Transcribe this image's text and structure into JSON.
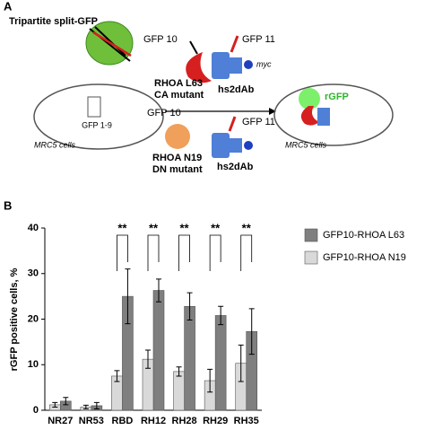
{
  "panels": [
    "A",
    "B"
  ],
  "panel_a": {
    "title": "Tripartite split-GFP",
    "top": {
      "gfp10": "GFP 10",
      "gfp11": "GFP 11",
      "rhoa": "RHOA L63",
      "mutant": "CA mutant",
      "nanobody": "hs2dAb",
      "tag": "myc"
    },
    "cell_left": {
      "fragment": "GFP 1-9",
      "label": "MRC5 cells"
    },
    "cell_right": {
      "signal": "rGFP",
      "label": "MRC5 cells"
    },
    "bottom": {
      "gfp10": "GFP 10",
      "gfp11": "GFP 11",
      "rhoa": "RHOA N19",
      "mutant": "DN mutant",
      "nanobody": "hs2dAb"
    }
  },
  "chart_data": {
    "type": "bar",
    "ylabel": "rGFP positive cells, %",
    "categories": [
      "NR27",
      "NR53",
      "RBD",
      "RH12",
      "RH28",
      "RH29",
      "RH35"
    ],
    "series": [
      {
        "name": "GFP10-RHOA L63",
        "color": "#7f7f7f",
        "values": [
          2,
          1,
          25,
          26.3,
          22.8,
          20.8,
          17.3
        ],
        "errors": [
          0.8,
          0.7,
          6,
          2.5,
          3,
          2,
          5
        ]
      },
      {
        "name": "GFP10-RHOA N19",
        "color": "#d9d9d9",
        "values": [
          1.2,
          0.7,
          7.5,
          11.2,
          8.5,
          6.5,
          10.3
        ],
        "errors": [
          0.5,
          0.4,
          1.2,
          2,
          1,
          2.5,
          4
        ]
      }
    ],
    "significance": [
      null,
      null,
      "**",
      "**",
      "**",
      "**",
      "**"
    ],
    "ylim": [
      0,
      40
    ],
    "yticks": [
      0,
      10,
      20,
      30,
      40
    ]
  }
}
